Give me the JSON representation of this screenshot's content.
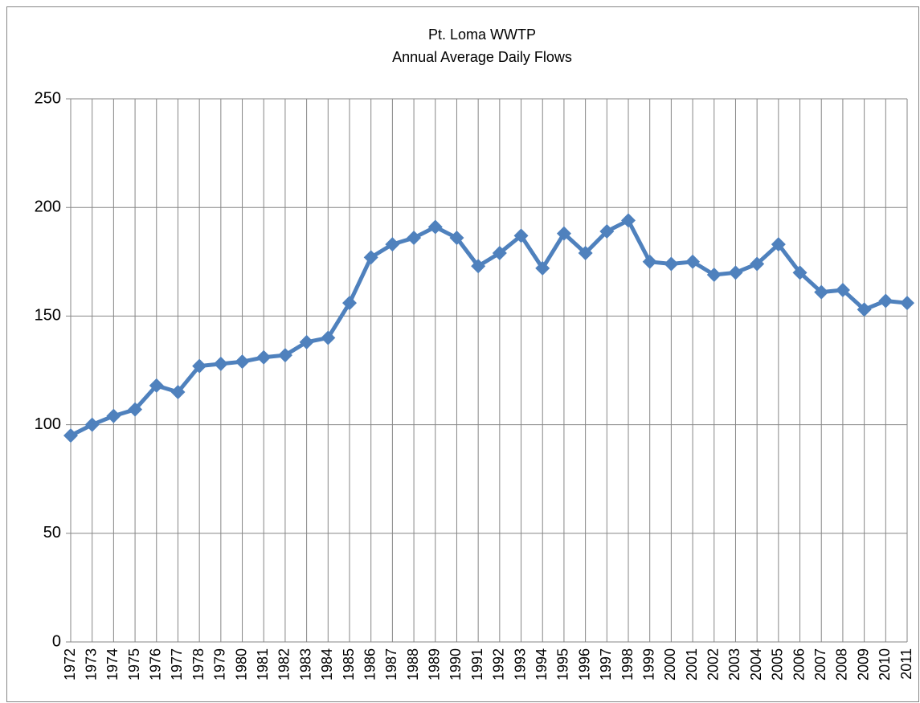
{
  "chart_data": {
    "type": "line",
    "title": "Pt. Loma WWTP",
    "subtitle": "Annual Average Daily Flows",
    "categories": [
      "1972",
      "1973",
      "1974",
      "1975",
      "1976",
      "1977",
      "1978",
      "1979",
      "1980",
      "1981",
      "1982",
      "1983",
      "1984",
      "1985",
      "1986",
      "1987",
      "1988",
      "1989",
      "1990",
      "1991",
      "1992",
      "1993",
      "1994",
      "1995",
      "1996",
      "1997",
      "1998",
      "1999",
      "2000",
      "2001",
      "2002",
      "2003",
      "2004",
      "2005",
      "2006",
      "2007",
      "2008",
      "2009",
      "2010",
      "2011"
    ],
    "series": [
      {
        "color": "#4f81bd",
        "values": [
          95,
          100,
          104,
          107,
          118,
          115,
          127,
          128,
          129,
          131,
          132,
          138,
          140,
          156,
          177,
          183,
          186,
          191,
          186,
          173,
          179,
          187,
          172,
          188,
          179,
          189,
          194,
          175,
          174,
          175,
          169,
          170,
          174,
          183,
          170,
          161,
          162,
          153,
          157,
          156
        ]
      }
    ],
    "ylim": [
      0,
      250
    ],
    "yticks": [
      0,
      50,
      100,
      150,
      200,
      250
    ],
    "grid": true
  }
}
